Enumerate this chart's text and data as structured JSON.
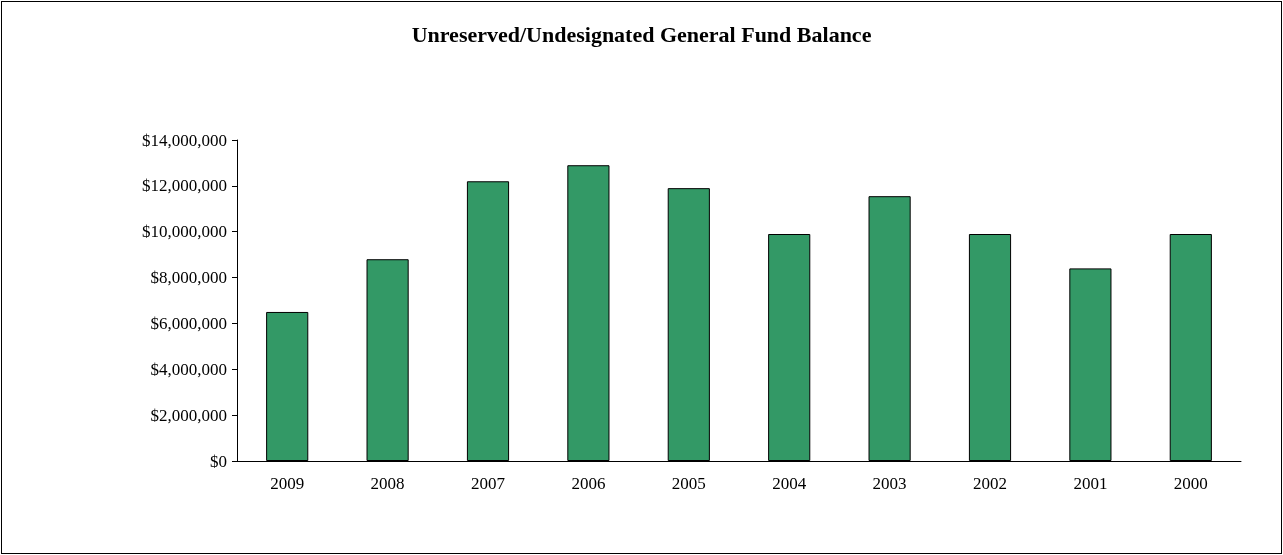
{
  "chart_data": {
    "type": "bar",
    "title": "Unreserved/Undesignated General Fund Balance",
    "categories": [
      "2009",
      "2008",
      "2007",
      "2006",
      "2005",
      "2004",
      "2003",
      "2002",
      "2001",
      "2000"
    ],
    "values": [
      6500000,
      8800000,
      12200000,
      12900000,
      11900000,
      9900000,
      11550000,
      9900000,
      8400000,
      9900000
    ],
    "color": "#339966",
    "ylim": [
      0,
      14000000
    ],
    "yticks": [
      {
        "value": 0,
        "label": "$0"
      },
      {
        "value": 2000000,
        "label": "$2,000,000"
      },
      {
        "value": 4000000,
        "label": "$4,000,000"
      },
      {
        "value": 6000000,
        "label": "$6,000,000"
      },
      {
        "value": 8000000,
        "label": "$8,000,000"
      },
      {
        "value": 10000000,
        "label": "$10,000,000"
      },
      {
        "value": 12000000,
        "label": "$12,000,000"
      },
      {
        "value": 14000000,
        "label": "$14,000,000"
      }
    ],
    "grid": false
  }
}
